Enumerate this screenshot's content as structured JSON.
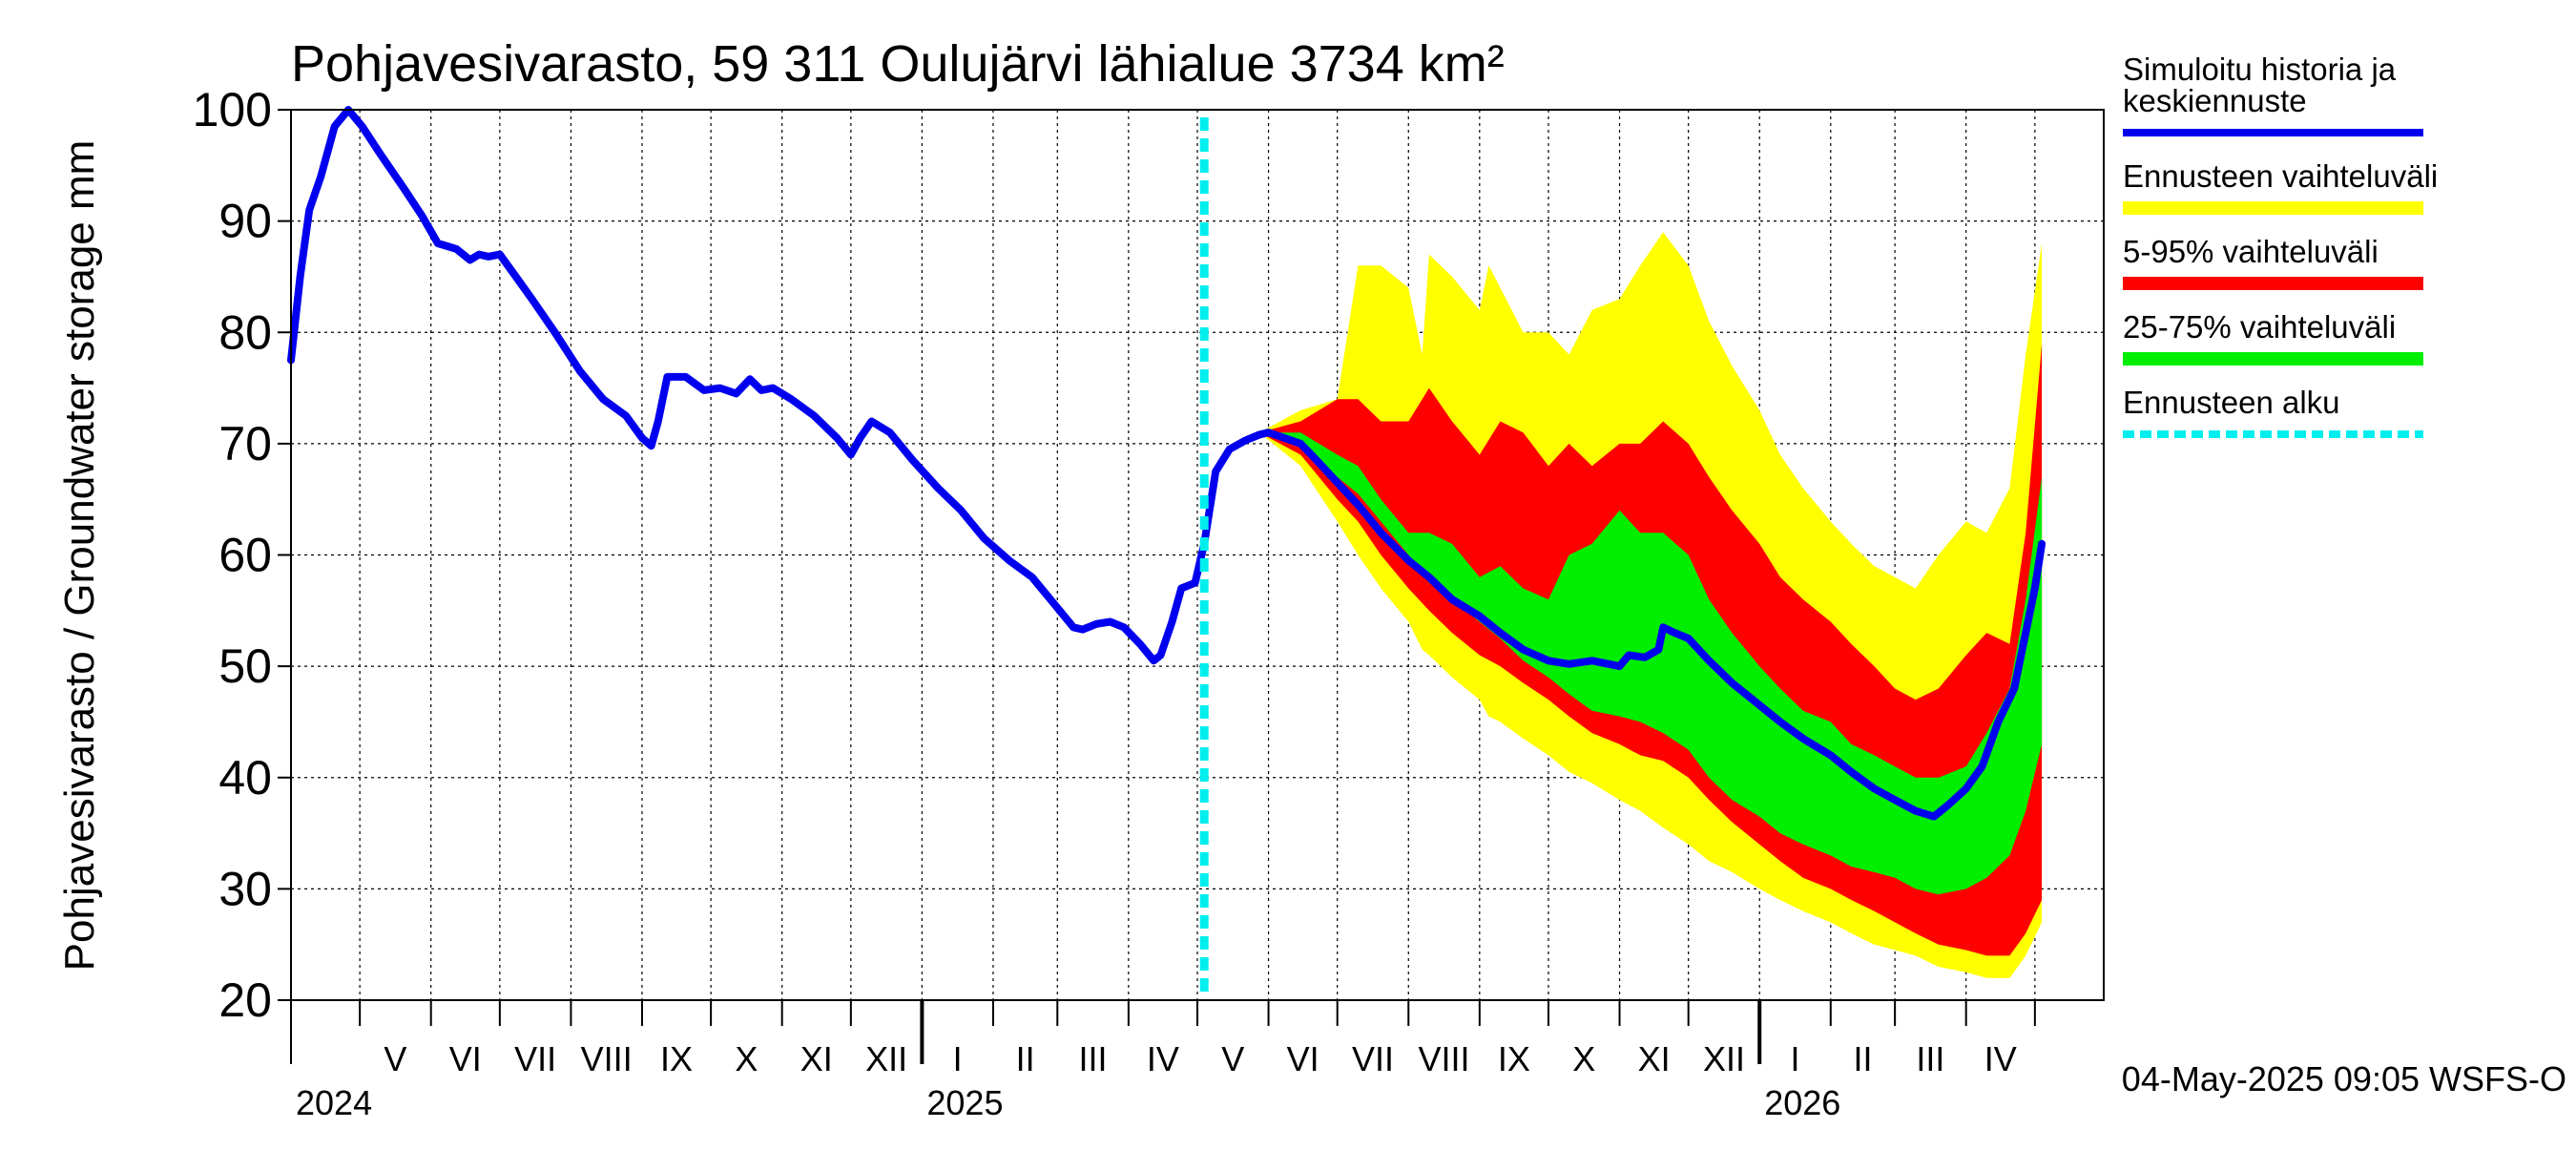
{
  "chart_data": {
    "type": "area",
    "title": "Pohjavesivarasto, 59 311 Oulujärvi lähialue 3734 km²",
    "ylabel": "Pohjavesivarasto / Groundwater storage   mm",
    "ylim": [
      20,
      100
    ],
    "yticks": [
      20,
      30,
      40,
      50,
      60,
      70,
      80,
      90,
      100
    ],
    "grid": true,
    "legend_position": "right",
    "x_start": "2024-04-01",
    "x_end": "2026-05-31",
    "month_labels": [
      {
        "label": "V",
        "date": "2024-05-01"
      },
      {
        "label": "VI",
        "date": "2024-06-01"
      },
      {
        "label": "VII",
        "date": "2024-07-01"
      },
      {
        "label": "VIII",
        "date": "2024-08-01"
      },
      {
        "label": "IX",
        "date": "2024-09-01"
      },
      {
        "label": "X",
        "date": "2024-10-01"
      },
      {
        "label": "XI",
        "date": "2024-11-01"
      },
      {
        "label": "XII",
        "date": "2024-12-01"
      },
      {
        "label": "I",
        "date": "2025-01-01"
      },
      {
        "label": "II",
        "date": "2025-02-01"
      },
      {
        "label": "III",
        "date": "2025-03-01"
      },
      {
        "label": "IV",
        "date": "2025-04-01"
      },
      {
        "label": "V",
        "date": "2025-05-01"
      },
      {
        "label": "VI",
        "date": "2025-06-01"
      },
      {
        "label": "VII",
        "date": "2025-07-01"
      },
      {
        "label": "VIII",
        "date": "2025-08-01"
      },
      {
        "label": "IX",
        "date": "2025-09-01"
      },
      {
        "label": "X",
        "date": "2025-10-01"
      },
      {
        "label": "XI",
        "date": "2025-11-01"
      },
      {
        "label": "XII",
        "date": "2025-12-01"
      },
      {
        "label": "I",
        "date": "2026-01-01"
      },
      {
        "label": "II",
        "date": "2026-02-01"
      },
      {
        "label": "III",
        "date": "2026-03-01"
      },
      {
        "label": "IV",
        "date": "2026-04-01"
      }
    ],
    "year_labels": [
      {
        "label": "2024",
        "date": "2024-04-01"
      },
      {
        "label": "2025",
        "date": "2025-01-01"
      },
      {
        "label": "2026",
        "date": "2026-01-01"
      }
    ],
    "forecast_start": "2025-05-04",
    "legend": [
      {
        "label": "Simuloitu historia ja keskiennuste",
        "lines": [
          "Simuloitu historia ja",
          "keskiennuste"
        ],
        "color": "#0000ee",
        "style": "line"
      },
      {
        "label": "Ennusteen vaihteluväli",
        "lines": [
          "Ennusteen vaihteluväli"
        ],
        "color": "#ffff00",
        "style": "band"
      },
      {
        "label": "5-95% vaihteluväli",
        "lines": [
          "5-95% vaihteluväli"
        ],
        "color": "#ff0000",
        "style": "band"
      },
      {
        "label": "25-75% vaihteluväli",
        "lines": [
          "25-75% vaihteluväli"
        ],
        "color": "#00ee00",
        "style": "band"
      },
      {
        "label": "Ennusteen alku",
        "lines": [
          "Ennusteen alku"
        ],
        "color": "#00eeee",
        "style": "dashed"
      }
    ],
    "series": [
      {
        "name": "Simuloitu historia ja keskiennuste",
        "color": "#0000ee",
        "points": [
          [
            "2024-04-01",
            77.5
          ],
          [
            "2024-04-05",
            85
          ],
          [
            "2024-04-09",
            91
          ],
          [
            "2024-04-14",
            94
          ],
          [
            "2024-04-20",
            98.5
          ],
          [
            "2024-04-26",
            100
          ],
          [
            "2024-05-02",
            98.5
          ],
          [
            "2024-05-10",
            96
          ],
          [
            "2024-05-20",
            93
          ],
          [
            "2024-05-28",
            90.5
          ],
          [
            "2024-06-04",
            88
          ],
          [
            "2024-06-12",
            87.5
          ],
          [
            "2024-06-18",
            86.5
          ],
          [
            "2024-06-22",
            87
          ],
          [
            "2024-06-26",
            86.8
          ],
          [
            "2024-07-01",
            87
          ],
          [
            "2024-07-08",
            85
          ],
          [
            "2024-07-15",
            83
          ],
          [
            "2024-07-25",
            80
          ],
          [
            "2024-08-05",
            76.5
          ],
          [
            "2024-08-15",
            74
          ],
          [
            "2024-08-25",
            72.5
          ],
          [
            "2024-09-01",
            70.5
          ],
          [
            "2024-09-05",
            69.8
          ],
          [
            "2024-09-08",
            72
          ],
          [
            "2024-09-12",
            76
          ],
          [
            "2024-09-20",
            76
          ],
          [
            "2024-09-28",
            74.8
          ],
          [
            "2024-10-05",
            75
          ],
          [
            "2024-10-12",
            74.5
          ],
          [
            "2024-10-18",
            75.8
          ],
          [
            "2024-10-23",
            74.8
          ],
          [
            "2024-10-28",
            75
          ],
          [
            "2024-11-05",
            74
          ],
          [
            "2024-11-15",
            72.5
          ],
          [
            "2024-11-25",
            70.5
          ],
          [
            "2024-12-01",
            69
          ],
          [
            "2024-12-05",
            70.5
          ],
          [
            "2024-12-10",
            72
          ],
          [
            "2024-12-18",
            71
          ],
          [
            "2024-12-28",
            68.5
          ],
          [
            "2025-01-08",
            66
          ],
          [
            "2025-01-18",
            64
          ],
          [
            "2025-01-28",
            61.5
          ],
          [
            "2025-02-08",
            59.5
          ],
          [
            "2025-02-18",
            58
          ],
          [
            "2025-02-28",
            55.5
          ],
          [
            "2025-03-08",
            53.5
          ],
          [
            "2025-03-12",
            53.3
          ],
          [
            "2025-03-18",
            53.8
          ],
          [
            "2025-03-24",
            54
          ],
          [
            "2025-03-30",
            53.5
          ],
          [
            "2025-04-06",
            52
          ],
          [
            "2025-04-12",
            50.5
          ],
          [
            "2025-04-15",
            51
          ],
          [
            "2025-04-20",
            54
          ],
          [
            "2025-04-24",
            57
          ],
          [
            "2025-04-30",
            57.5
          ],
          [
            "2025-05-04",
            61
          ],
          [
            "2025-05-09",
            67.5
          ],
          [
            "2025-05-15",
            69.5
          ],
          [
            "2025-05-22",
            70.3
          ],
          [
            "2025-05-28",
            70.8
          ],
          [
            "2025-06-01",
            71
          ],
          [
            "2025-06-08",
            70.5
          ],
          [
            "2025-06-15",
            70
          ],
          [
            "2025-06-22",
            68.5
          ],
          [
            "2025-07-01",
            66.5
          ],
          [
            "2025-07-10",
            64.5
          ],
          [
            "2025-07-20",
            62
          ],
          [
            "2025-08-01",
            59.5
          ],
          [
            "2025-08-10",
            58
          ],
          [
            "2025-08-20",
            56
          ],
          [
            "2025-09-01",
            54.5
          ],
          [
            "2025-09-10",
            53
          ],
          [
            "2025-09-20",
            51.5
          ],
          [
            "2025-10-01",
            50.5
          ],
          [
            "2025-10-10",
            50.2
          ],
          [
            "2025-10-20",
            50.5
          ],
          [
            "2025-11-01",
            50
          ],
          [
            "2025-11-05",
            51
          ],
          [
            "2025-11-12",
            50.8
          ],
          [
            "2025-11-18",
            51.5
          ],
          [
            "2025-11-20",
            53.5
          ],
          [
            "2025-11-25",
            53
          ],
          [
            "2025-12-01",
            52.5
          ],
          [
            "2025-12-10",
            50.5
          ],
          [
            "2025-12-20",
            48.5
          ],
          [
            "2026-01-01",
            46.5
          ],
          [
            "2026-01-10",
            45
          ],
          [
            "2026-01-20",
            43.5
          ],
          [
            "2026-02-01",
            42
          ],
          [
            "2026-02-10",
            40.5
          ],
          [
            "2026-02-20",
            39
          ],
          [
            "2026-03-01",
            38
          ],
          [
            "2026-03-10",
            37
          ],
          [
            "2026-03-18",
            36.5
          ],
          [
            "2026-03-24",
            37.5
          ],
          [
            "2026-04-01",
            39
          ],
          [
            "2026-04-08",
            41
          ],
          [
            "2026-04-15",
            45
          ],
          [
            "2026-04-22",
            48
          ],
          [
            "2026-04-27",
            53
          ],
          [
            "2026-05-01",
            57
          ],
          [
            "2026-05-04",
            61
          ]
        ]
      }
    ],
    "bands": [
      {
        "name": "Ennusteen vaihteluväli",
        "color": "#ffff00",
        "x": [
          "2025-05-28",
          "2025-06-15",
          "2025-07-01",
          "2025-07-10",
          "2025-07-20",
          "2025-08-01",
          "2025-08-07",
          "2025-08-10",
          "2025-08-20",
          "2025-09-01",
          "2025-09-05",
          "2025-09-10",
          "2025-09-20",
          "2025-10-01",
          "2025-10-10",
          "2025-10-20",
          "2025-11-01",
          "2025-11-10",
          "2025-11-20",
          "2025-12-01",
          "2025-12-10",
          "2025-12-20",
          "2026-01-01",
          "2026-01-10",
          "2026-01-20",
          "2026-02-01",
          "2026-02-10",
          "2026-02-20",
          "2026-03-01",
          "2026-03-10",
          "2026-03-20",
          "2026-04-01",
          "2026-04-10",
          "2026-04-20",
          "2026-04-27",
          "2026-05-04"
        ],
        "upper": [
          71,
          73,
          74,
          86,
          86,
          84,
          78,
          87,
          85,
          82,
          86,
          84,
          80,
          80,
          78,
          82,
          83,
          86,
          89,
          86,
          81,
          77,
          73,
          69,
          66,
          63,
          61,
          59,
          58,
          57,
          60,
          63,
          62,
          66,
          78,
          88
        ],
        "lower": [
          71,
          68,
          63,
          60,
          57,
          54,
          51.5,
          51,
          49,
          47,
          45.5,
          45,
          43.5,
          42,
          40.5,
          39.5,
          38,
          37,
          35.5,
          34,
          32.5,
          31.5,
          30,
          29,
          28,
          27,
          26,
          25,
          24.5,
          24,
          23,
          22.5,
          22,
          22,
          24,
          27
        ]
      },
      {
        "name": "5-95% vaihteluväli",
        "color": "#ff0000",
        "x": [
          "2025-05-28",
          "2025-06-15",
          "2025-07-01",
          "2025-07-10",
          "2025-07-20",
          "2025-08-01",
          "2025-08-10",
          "2025-08-20",
          "2025-09-01",
          "2025-09-10",
          "2025-09-20",
          "2025-10-01",
          "2025-10-10",
          "2025-10-20",
          "2025-11-01",
          "2025-11-10",
          "2025-11-20",
          "2025-12-01",
          "2025-12-10",
          "2025-12-20",
          "2026-01-01",
          "2026-01-10",
          "2026-01-20",
          "2026-02-01",
          "2026-02-10",
          "2026-02-20",
          "2026-03-01",
          "2026-03-10",
          "2026-03-20",
          "2026-04-01",
          "2026-04-10",
          "2026-04-20",
          "2026-04-27",
          "2026-05-04"
        ],
        "upper": [
          71,
          72,
          74,
          74,
          72,
          72,
          75,
          72,
          69,
          72,
          71,
          68,
          70,
          68,
          70,
          70,
          72,
          70,
          67,
          64,
          61,
          58,
          56,
          54,
          52,
          50,
          48,
          47,
          48,
          51,
          53,
          52,
          62,
          79
        ],
        "lower": [
          71,
          69,
          65,
          63,
          60,
          57,
          55,
          53,
          51,
          50,
          48.5,
          47,
          45.5,
          44,
          43,
          42,
          41.5,
          40,
          38,
          36,
          34,
          32.5,
          31,
          30,
          29,
          28,
          27,
          26,
          25,
          24.5,
          24,
          24,
          26,
          29
        ]
      },
      {
        "name": "25-75% vaihteluväli",
        "color": "#00ee00",
        "x": [
          "2025-05-28",
          "2025-06-15",
          "2025-07-01",
          "2025-07-10",
          "2025-07-20",
          "2025-08-01",
          "2025-08-10",
          "2025-08-20",
          "2025-09-01",
          "2025-09-10",
          "2025-09-20",
          "2025-10-01",
          "2025-10-10",
          "2025-10-20",
          "2025-11-01",
          "2025-11-10",
          "2025-11-20",
          "2025-12-01",
          "2025-12-10",
          "2025-12-20",
          "2026-01-01",
          "2026-01-10",
          "2026-01-20",
          "2026-02-01",
          "2026-02-10",
          "2026-02-20",
          "2026-03-01",
          "2026-03-10",
          "2026-03-20",
          "2026-04-01",
          "2026-04-10",
          "2026-04-20",
          "2026-04-27",
          "2026-05-04"
        ],
        "upper": [
          71,
          71,
          69,
          68,
          65,
          62,
          62,
          61,
          58,
          59,
          57,
          56,
          60,
          61,
          64,
          62,
          62,
          60,
          56,
          53,
          50,
          48,
          46,
          45,
          43,
          42,
          41,
          40,
          40,
          41,
          44,
          48,
          56,
          67
        ],
        "lower": [
          71,
          70,
          67,
          65.5,
          63,
          60,
          57.5,
          56,
          54,
          52.5,
          50.5,
          49,
          47.5,
          46,
          45.5,
          45,
          44,
          42.5,
          40,
          38,
          36.5,
          35,
          34,
          33,
          32,
          31.5,
          31,
          30,
          29.5,
          30,
          31,
          33,
          37,
          43
        ]
      }
    ],
    "footer": "04-May-2025 09:05 WSFS-O"
  }
}
